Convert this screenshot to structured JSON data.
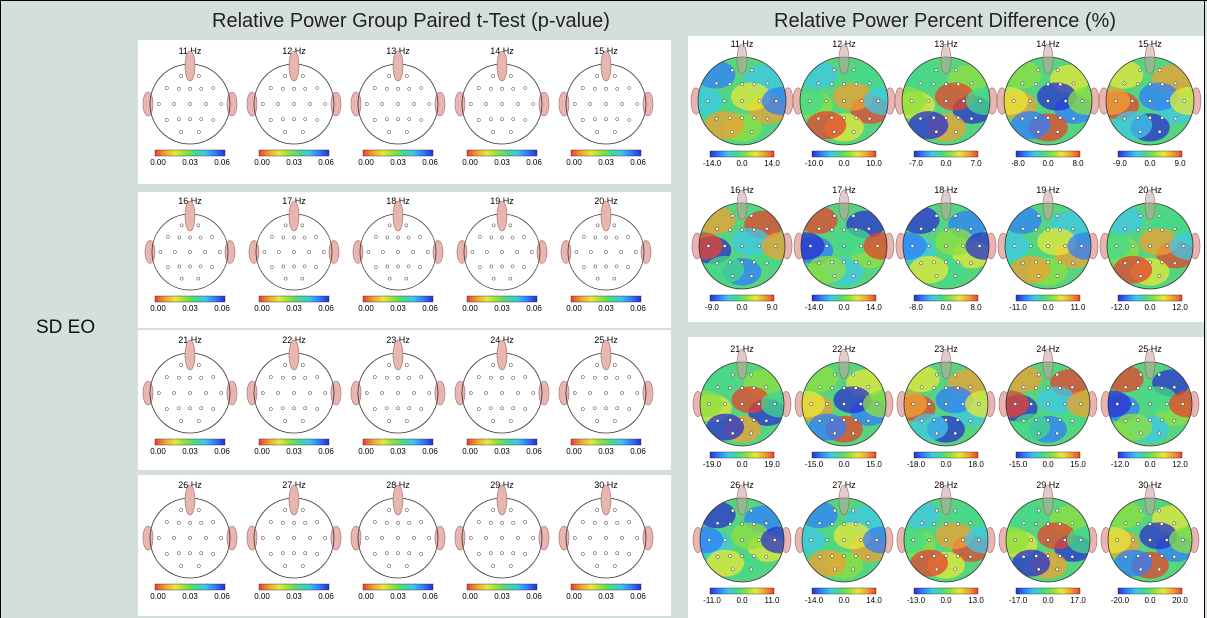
{
  "headers": {
    "pvalue": "Relative Power Group Paired t-Test (p-value)",
    "percent": "Relative Power Percent Difference (%)"
  },
  "row_label": "SD EO",
  "pvalue_ticks": [
    "0.00",
    "0.03",
    "0.06"
  ],
  "pvalue_panels": [
    {
      "maps": [
        {
          "freq": "11 Hz"
        },
        {
          "freq": "12 Hz"
        },
        {
          "freq": "13 Hz"
        },
        {
          "freq": "14 Hz"
        },
        {
          "freq": "15 Hz"
        }
      ]
    },
    {
      "maps": [
        {
          "freq": "16 Hz"
        },
        {
          "freq": "17 Hz"
        },
        {
          "freq": "18 Hz"
        },
        {
          "freq": "19 Hz"
        },
        {
          "freq": "20 Hz"
        }
      ]
    },
    {
      "maps": [
        {
          "freq": "21 Hz"
        },
        {
          "freq": "22 Hz"
        },
        {
          "freq": "23 Hz"
        },
        {
          "freq": "24 Hz"
        },
        {
          "freq": "25 Hz"
        }
      ]
    },
    {
      "maps": [
        {
          "freq": "26 Hz"
        },
        {
          "freq": "27 Hz"
        },
        {
          "freq": "28 Hz"
        },
        {
          "freq": "29 Hz"
        },
        {
          "freq": "30 Hz"
        }
      ]
    }
  ],
  "percent_panels": [
    {
      "maps": [
        {
          "freq": "11 Hz",
          "ticks": [
            "-14.0",
            "0.0",
            "14.0"
          ]
        },
        {
          "freq": "12 Hz",
          "ticks": [
            "-10.0",
            "0.0",
            "10.0"
          ]
        },
        {
          "freq": "13 Hz",
          "ticks": [
            "-7.0",
            "0.0",
            "7.0"
          ]
        },
        {
          "freq": "14 Hz",
          "ticks": [
            "-8.0",
            "0.0",
            "8.0"
          ]
        },
        {
          "freq": "15 Hz",
          "ticks": [
            "-9.0",
            "0.0",
            "9.0"
          ]
        }
      ]
    },
    {
      "maps": [
        {
          "freq": "16 Hz",
          "ticks": [
            "-9.0",
            "0.0",
            "9.0"
          ]
        },
        {
          "freq": "17 Hz",
          "ticks": [
            "-14.0",
            "0.0",
            "14.0"
          ]
        },
        {
          "freq": "18 Hz",
          "ticks": [
            "-8.0",
            "0.0",
            "8.0"
          ]
        },
        {
          "freq": "19 Hz",
          "ticks": [
            "-11.0",
            "0.0",
            "11.0"
          ]
        },
        {
          "freq": "20 Hz",
          "ticks": [
            "-12.0",
            "0.0",
            "12.0"
          ]
        }
      ]
    },
    {
      "maps": [
        {
          "freq": "21 Hz",
          "ticks": [
            "-19.0",
            "0.0",
            "19.0"
          ]
        },
        {
          "freq": "22 Hz",
          "ticks": [
            "-15.0",
            "0.0",
            "15.0"
          ]
        },
        {
          "freq": "23 Hz",
          "ticks": [
            "-18.0",
            "0.0",
            "18.0"
          ]
        },
        {
          "freq": "24 Hz",
          "ticks": [
            "-15.0",
            "0.0",
            "15.0"
          ]
        },
        {
          "freq": "25 Hz",
          "ticks": [
            "-12.0",
            "0.0",
            "12.0"
          ]
        }
      ]
    },
    {
      "maps": [
        {
          "freq": "26 Hz",
          "ticks": [
            "-11.0",
            "0.0",
            "11.0"
          ]
        },
        {
          "freq": "27 Hz",
          "ticks": [
            "-14.0",
            "0.0",
            "14.0"
          ]
        },
        {
          "freq": "28 Hz",
          "ticks": [
            "-13.0",
            "0.0",
            "13.0"
          ]
        },
        {
          "freq": "29 Hz",
          "ticks": [
            "-17.0",
            "0.0",
            "17.0"
          ]
        },
        {
          "freq": "30 Hz",
          "ticks": [
            "-20.0",
            "0.0",
            "20.0"
          ]
        }
      ]
    }
  ]
}
